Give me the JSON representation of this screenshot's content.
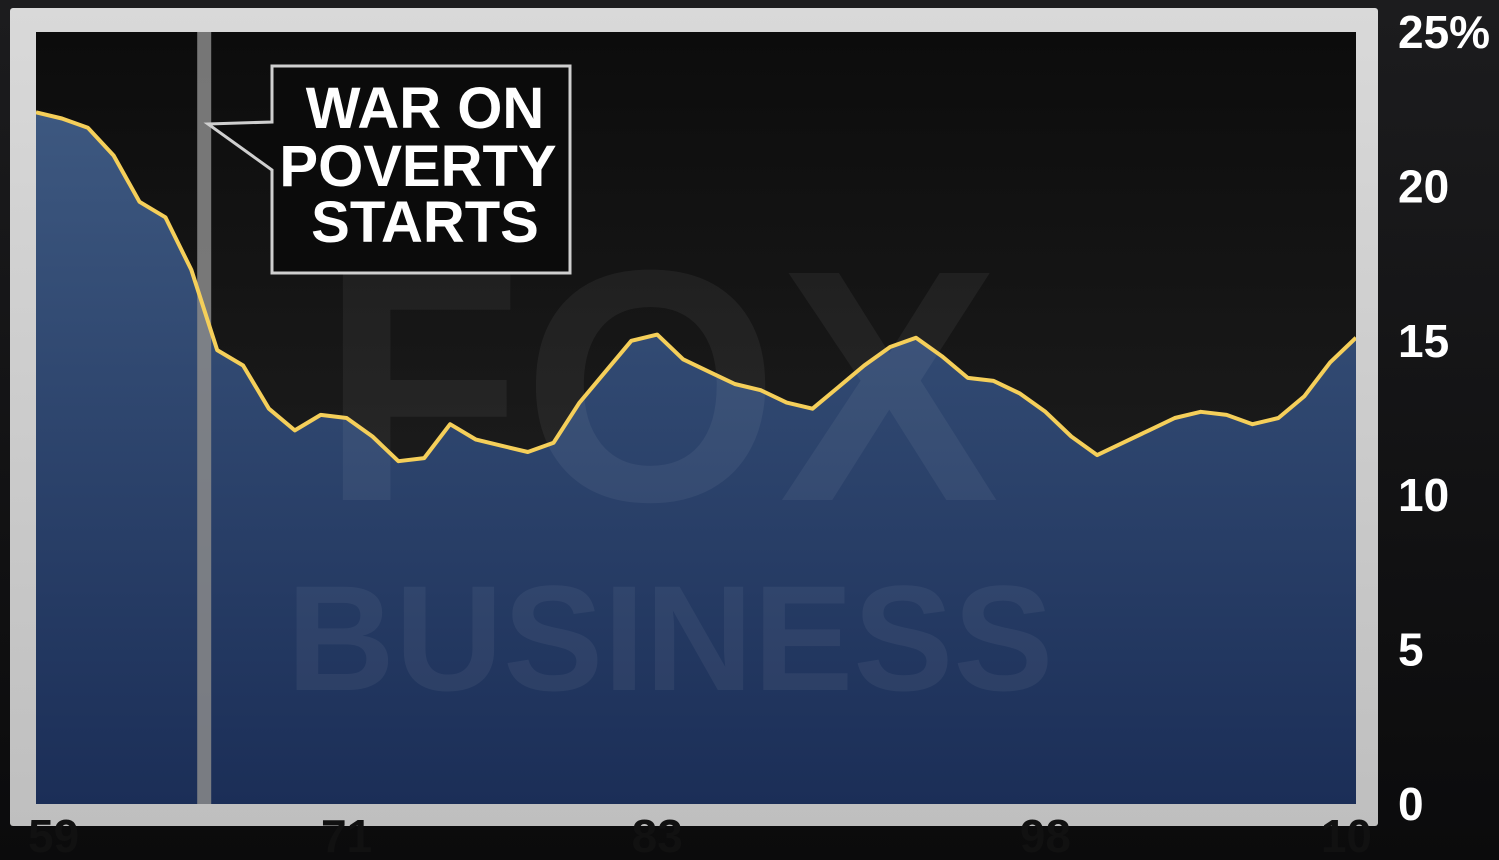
{
  "chart_data": {
    "type": "area",
    "x": [
      1959,
      1960,
      1961,
      1962,
      1963,
      1964,
      1965,
      1966,
      1967,
      1968,
      1969,
      1970,
      1971,
      1972,
      1973,
      1974,
      1975,
      1976,
      1977,
      1978,
      1979,
      1980,
      1981,
      1982,
      1983,
      1984,
      1985,
      1986,
      1987,
      1988,
      1989,
      1990,
      1991,
      1992,
      1993,
      1994,
      1995,
      1996,
      1997,
      1998,
      1999,
      2000,
      2001,
      2002,
      2003,
      2004,
      2005,
      2006,
      2007,
      2008,
      2009,
      2010
    ],
    "series": [
      {
        "values": [
          22.4,
          22.2,
          21.9,
          21.0,
          19.5,
          19.0,
          17.3,
          14.7,
          14.2,
          12.8,
          12.1,
          12.6,
          12.5,
          11.9,
          11.1,
          11.2,
          12.3,
          11.8,
          11.6,
          11.4,
          11.7,
          13.0,
          14.0,
          15.0,
          15.2,
          14.4,
          14.0,
          13.6,
          13.4,
          13.0,
          12.8,
          13.5,
          14.2,
          14.8,
          15.1,
          14.5,
          13.8,
          13.7,
          13.3,
          12.7,
          11.9,
          11.3,
          11.7,
          12.1,
          12.5,
          12.7,
          12.6,
          12.3,
          12.5,
          13.2,
          14.3,
          15.1
        ]
      }
    ],
    "xtick_labels": [
      "59",
      "71",
      "83",
      "98",
      "10"
    ],
    "xtick_values": [
      1959,
      1971,
      1983,
      1998,
      2010
    ],
    "ytick_labels": [
      "25%",
      "20",
      "15",
      "10",
      "5",
      "0"
    ],
    "ytick_values": [
      25,
      20,
      15,
      10,
      5,
      0
    ],
    "ylim": [
      0,
      25
    ],
    "xlim": [
      1959,
      2010
    ],
    "annotation": {
      "lines": [
        "WAR ON",
        "POVERTY",
        "STARTS"
      ],
      "x": 1965.5
    },
    "watermark": {
      "line1": "FOX",
      "line2": "BUSINESS"
    },
    "colors": {
      "line": "#f5cf5a",
      "area_top": "#3d5880",
      "area_bottom": "#1b2e57",
      "plot_bg": "#141414",
      "marker": "#8a8a8a"
    },
    "grid": false
  }
}
